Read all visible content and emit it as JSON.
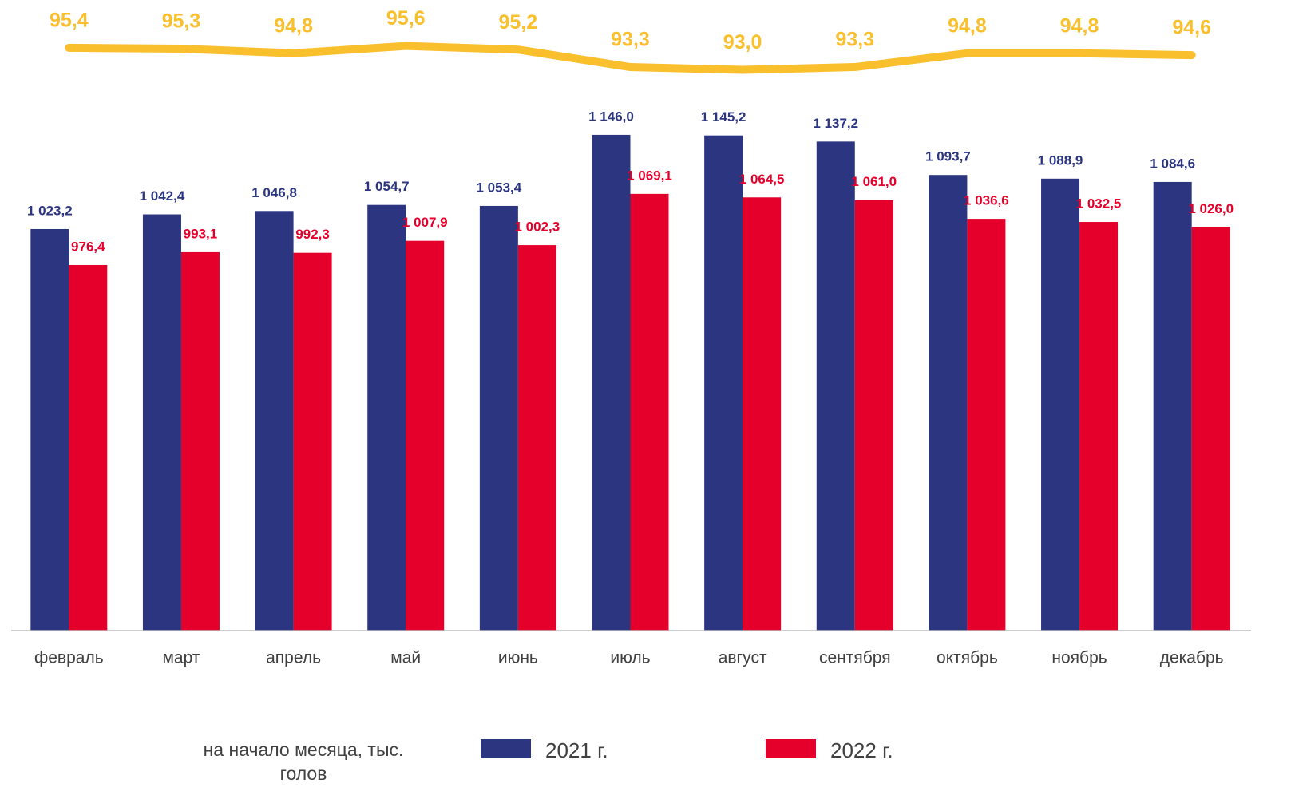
{
  "chart_data": {
    "type": "bar",
    "categories": [
      "февраль",
      "март",
      "апрель",
      "май",
      "июнь",
      "июль",
      "август",
      "сентября",
      "октябрь",
      "ноябрь",
      "декабрь"
    ],
    "ylim": [
      500,
      1200
    ],
    "y2lim": [
      90,
      100
    ],
    "note": "на начало месяца, тыс. голов",
    "series": [
      {
        "name": "2021 г.",
        "color": "#2b3580",
        "values": [
          1023.2,
          1042.4,
          1046.8,
          1054.7,
          1053.4,
          1146.0,
          1145.2,
          1137.2,
          1093.7,
          1088.9,
          1084.6
        ],
        "value_labels": [
          "1 023,2",
          "1 042,4",
          "1 046,8",
          "1 054,7",
          "1 053,4",
          "1 146,0",
          "1 145,2",
          "1 137,2",
          "1 093,7",
          "1 088,9",
          "1 084,6"
        ]
      },
      {
        "name": "2022 г.",
        "color": "#e4002b",
        "values": [
          976.4,
          993.1,
          992.3,
          1007.9,
          1002.3,
          1069.1,
          1064.5,
          1061.0,
          1036.6,
          1032.5,
          1026.0
        ],
        "value_labels": [
          "976,4",
          "993,1",
          "992,3",
          "1 007,9",
          "1 002,3",
          "1 069,1",
          "1 064,5",
          "1 061,0",
          "1 036,6",
          "1 032,5",
          "1 026,0"
        ]
      },
      {
        "type": "line",
        "axis": "y2",
        "color": "#f9bf2d",
        "values": [
          95.4,
          95.3,
          94.8,
          95.6,
          95.2,
          93.3,
          93.0,
          93.3,
          94.8,
          94.8,
          94.6
        ],
        "value_labels": [
          "95,4",
          "95,3",
          "94,8",
          "95,6",
          "95,2",
          "93,3",
          "93,0",
          "93,3",
          "94,8",
          "94,8",
          "94,6"
        ]
      }
    ]
  }
}
